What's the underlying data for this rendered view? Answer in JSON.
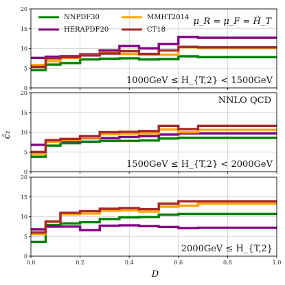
{
  "chart_data": [
    {
      "type": "line",
      "step": true,
      "panel": "top",
      "annotation_right": "1000GeV ≤ H_{T,2} < 1500GeV",
      "annotation_corner": "μ_R = μ_F = Ĥ_T",
      "legend": {
        "placement": "top-left",
        "columns": 2
      },
      "xlim": [
        0,
        1
      ],
      "ylim": [
        0,
        20
      ],
      "x_edges": [
        0,
        0.06,
        0.12,
        0.2,
        0.28,
        0.36,
        0.44,
        0.52,
        0.6,
        0.68,
        1.0
      ],
      "series": [
        {
          "name": "NNPDF30",
          "color": "#008000",
          "values": [
            4.5,
            5.9,
            6.3,
            7.2,
            7.4,
            7.5,
            7.2,
            7.3,
            8.0,
            7.8
          ]
        },
        {
          "name": "HERAPDF20",
          "color": "#800080",
          "values": [
            7.6,
            7.9,
            8.0,
            8.5,
            9.5,
            10.6,
            10.0,
            11.1,
            12.9,
            12.7
          ]
        },
        {
          "name": "MMHT2014",
          "color": "#ffa500",
          "values": [
            5.8,
            6.8,
            7.6,
            8.3,
            8.9,
            8.6,
            8.4,
            8.4,
            10.3,
            10.1
          ]
        },
        {
          "name": "CT18",
          "color": "#a52a2a",
          "values": [
            5.3,
            7.5,
            7.8,
            8.2,
            8.7,
            9.3,
            8.6,
            9.5,
            10.4,
            10.3
          ]
        }
      ],
      "y_ticks": [
        "0",
        "5",
        "10",
        "15",
        "20"
      ]
    },
    {
      "type": "line",
      "step": true,
      "panel": "middle",
      "annotation_right": "1500GeV ≤ H_{T,2} < 2000GeV",
      "annotation_corner": "NNLO QCD",
      "xlim": [
        0,
        1
      ],
      "ylim": [
        0,
        20
      ],
      "x_edges": [
        0,
        0.06,
        0.12,
        0.2,
        0.28,
        0.36,
        0.44,
        0.52,
        0.6,
        0.68,
        1.0
      ],
      "series": [
        {
          "name": "NNPDF30",
          "color": "#008000",
          "values": [
            3.8,
            6.6,
            7.2,
            7.6,
            7.8,
            7.8,
            7.9,
            8.4,
            8.6,
            8.6
          ]
        },
        {
          "name": "HERAPDF20",
          "color": "#800080",
          "values": [
            6.8,
            7.6,
            7.7,
            8.5,
            8.5,
            8.8,
            9.0,
            9.4,
            9.7,
            9.7
          ]
        },
        {
          "name": "MMHT2014",
          "color": "#ffa500",
          "values": [
            4.5,
            7.6,
            8.0,
            8.7,
            9.5,
            9.6,
            9.7,
            10.7,
            10.0,
            10.6
          ]
        },
        {
          "name": "CT18",
          "color": "#a52a2a",
          "values": [
            5.0,
            8.0,
            8.3,
            9.0,
            10.0,
            10.1,
            10.3,
            11.6,
            10.8,
            11.6
          ]
        }
      ],
      "y_ticks": [
        "0",
        "5",
        "10",
        "15",
        "20"
      ]
    },
    {
      "type": "line",
      "step": true,
      "panel": "bottom",
      "annotation_right": "2000GeV ≤ H_{T,2}",
      "xlim": [
        0,
        1
      ],
      "ylim": [
        0,
        20
      ],
      "x_edges": [
        0,
        0.06,
        0.12,
        0.2,
        0.28,
        0.36,
        0.44,
        0.52,
        0.6,
        0.68,
        1.0
      ],
      "series": [
        {
          "name": "NNPDF30",
          "color": "#008000",
          "values": [
            3.6,
            7.9,
            8.3,
            8.6,
            9.4,
            9.8,
            9.9,
            10.5,
            10.7,
            10.7
          ]
        },
        {
          "name": "HERAPDF20",
          "color": "#800080",
          "values": [
            6.8,
            7.5,
            7.5,
            6.6,
            7.7,
            7.8,
            7.6,
            7.4,
            7.1,
            7.2
          ]
        },
        {
          "name": "MMHT2014",
          "color": "#ffa500",
          "values": [
            5.6,
            8.7,
            10.6,
            10.8,
            11.5,
            11.6,
            11.3,
            12.5,
            12.8,
            13.3
          ]
        },
        {
          "name": "CT18",
          "color": "#a52a2a",
          "values": [
            6.0,
            8.8,
            11.0,
            11.4,
            12.0,
            12.2,
            11.9,
            13.3,
            13.9,
            13.9
          ]
        }
      ],
      "y_ticks": [
        "0",
        "5",
        "10",
        "15",
        "20"
      ],
      "x_ticks": [
        "0.0",
        "0.2",
        "0.4",
        "0.6",
        "0.8",
        "1.0"
      ]
    }
  ],
  "axes": {
    "xlabel": "D",
    "ylabel": "ĉ₁",
    "grid": true
  },
  "legend_entries": [
    {
      "name": "NNPDF30",
      "color": "#008000"
    },
    {
      "name": "MMHT2014",
      "color": "#ffa500"
    },
    {
      "name": "HERAPDF20",
      "color": "#800080"
    },
    {
      "name": "CT18",
      "color": "#a52a2a"
    }
  ]
}
